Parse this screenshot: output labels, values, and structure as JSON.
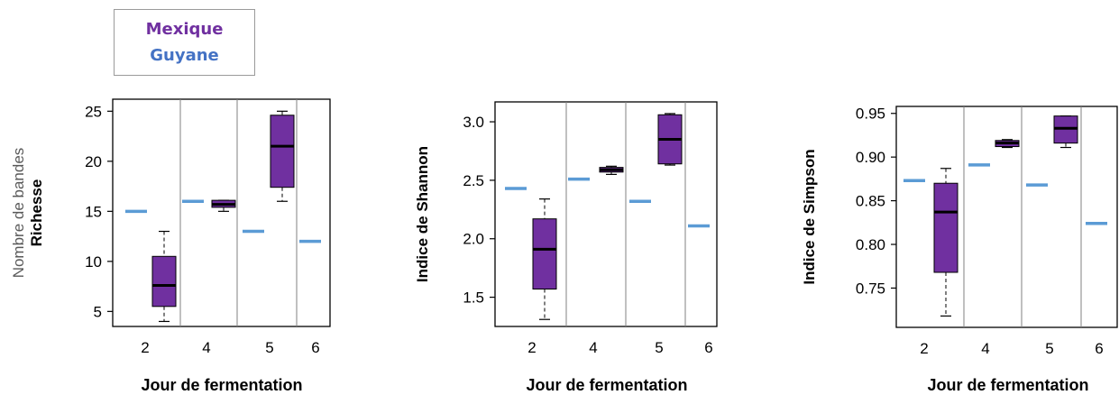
{
  "legend": {
    "items": [
      {
        "label": "Mexique",
        "color": "#7030A0"
      },
      {
        "label": "Guyane",
        "color": "#4472C4"
      }
    ]
  },
  "colors": {
    "mexique_box": "#7030A0",
    "guyane_line": "#5B9BD5",
    "median": "#000000",
    "axis": "#000000",
    "divider": "#808080"
  },
  "chart_data": [
    {
      "type": "box",
      "xlabel": "Jour de fermentation",
      "ylabel_lines": [
        "Nombre de bandes",
        "Richesse"
      ],
      "ylim": [
        3.5,
        26.2
      ],
      "yticks": [
        5,
        10,
        15,
        20,
        25
      ],
      "categories": [
        "2",
        "4",
        "5",
        "6"
      ],
      "series": [
        {
          "name": "Guyane",
          "values": [
            {
              "day": "2",
              "median": 15
            },
            {
              "day": "4",
              "median": 16
            },
            {
              "day": "5",
              "median": 13
            },
            {
              "day": "6",
              "median": 12
            }
          ]
        },
        {
          "name": "Mexique",
          "values": [
            {
              "day": "2",
              "min": 4,
              "q1": 5.5,
              "median": 7.6,
              "q3": 10.5,
              "max": 13
            },
            {
              "day": "4",
              "min": 15,
              "q1": 15.4,
              "median": 15.7,
              "q3": 16.1,
              "max": 16.1
            },
            {
              "day": "5",
              "min": 16,
              "q1": 17.4,
              "median": 21.5,
              "q3": 24.6,
              "max": 25
            }
          ]
        }
      ]
    },
    {
      "type": "box",
      "xlabel": "Jour de fermentation",
      "ylabel_lines": [
        "Indice de Shannon"
      ],
      "ylim": [
        1.25,
        3.17
      ],
      "yticks": [
        1.5,
        2.0,
        2.5,
        3.0
      ],
      "ytick_labels": [
        "1.5",
        "2.0",
        "2.5",
        "3.0"
      ],
      "categories": [
        "2",
        "4",
        "5",
        "6"
      ],
      "series": [
        {
          "name": "Guyane",
          "values": [
            {
              "day": "2",
              "median": 2.43
            },
            {
              "day": "4",
              "median": 2.51
            },
            {
              "day": "5",
              "median": 2.32
            },
            {
              "day": "6",
              "median": 2.11
            }
          ]
        },
        {
          "name": "Mexique",
          "values": [
            {
              "day": "2",
              "min": 1.31,
              "q1": 1.57,
              "median": 1.91,
              "q3": 2.17,
              "max": 2.34
            },
            {
              "day": "4",
              "min": 2.55,
              "q1": 2.57,
              "median": 2.59,
              "q3": 2.61,
              "max": 2.62
            },
            {
              "day": "5",
              "min": 2.63,
              "q1": 2.64,
              "median": 2.85,
              "q3": 3.06,
              "max": 3.07
            }
          ]
        }
      ]
    },
    {
      "type": "box",
      "xlabel": "Jour de fermentation",
      "ylabel_lines": [
        "Indice de Simpson"
      ],
      "ylim": [
        0.705,
        0.958
      ],
      "yticks": [
        0.75,
        0.8,
        0.85,
        0.9,
        0.95
      ],
      "ytick_labels": [
        "0.75",
        "0.80",
        "0.85",
        "0.90",
        "0.95"
      ],
      "categories": [
        "2",
        "4",
        "5",
        "6"
      ],
      "series": [
        {
          "name": "Guyane",
          "values": [
            {
              "day": "2",
              "median": 0.873
            },
            {
              "day": "4",
              "median": 0.891
            },
            {
              "day": "5",
              "median": 0.868
            },
            {
              "day": "6",
              "median": 0.824
            }
          ]
        },
        {
          "name": "Mexique",
          "values": [
            {
              "day": "2",
              "min": 0.718,
              "q1": 0.768,
              "median": 0.837,
              "q3": 0.87,
              "max": 0.887
            },
            {
              "day": "4",
              "min": 0.911,
              "q1": 0.912,
              "median": 0.916,
              "q3": 0.919,
              "max": 0.92
            },
            {
              "day": "5",
              "min": 0.911,
              "q1": 0.916,
              "median": 0.933,
              "q3": 0.947,
              "max": 0.947
            }
          ]
        }
      ]
    }
  ]
}
